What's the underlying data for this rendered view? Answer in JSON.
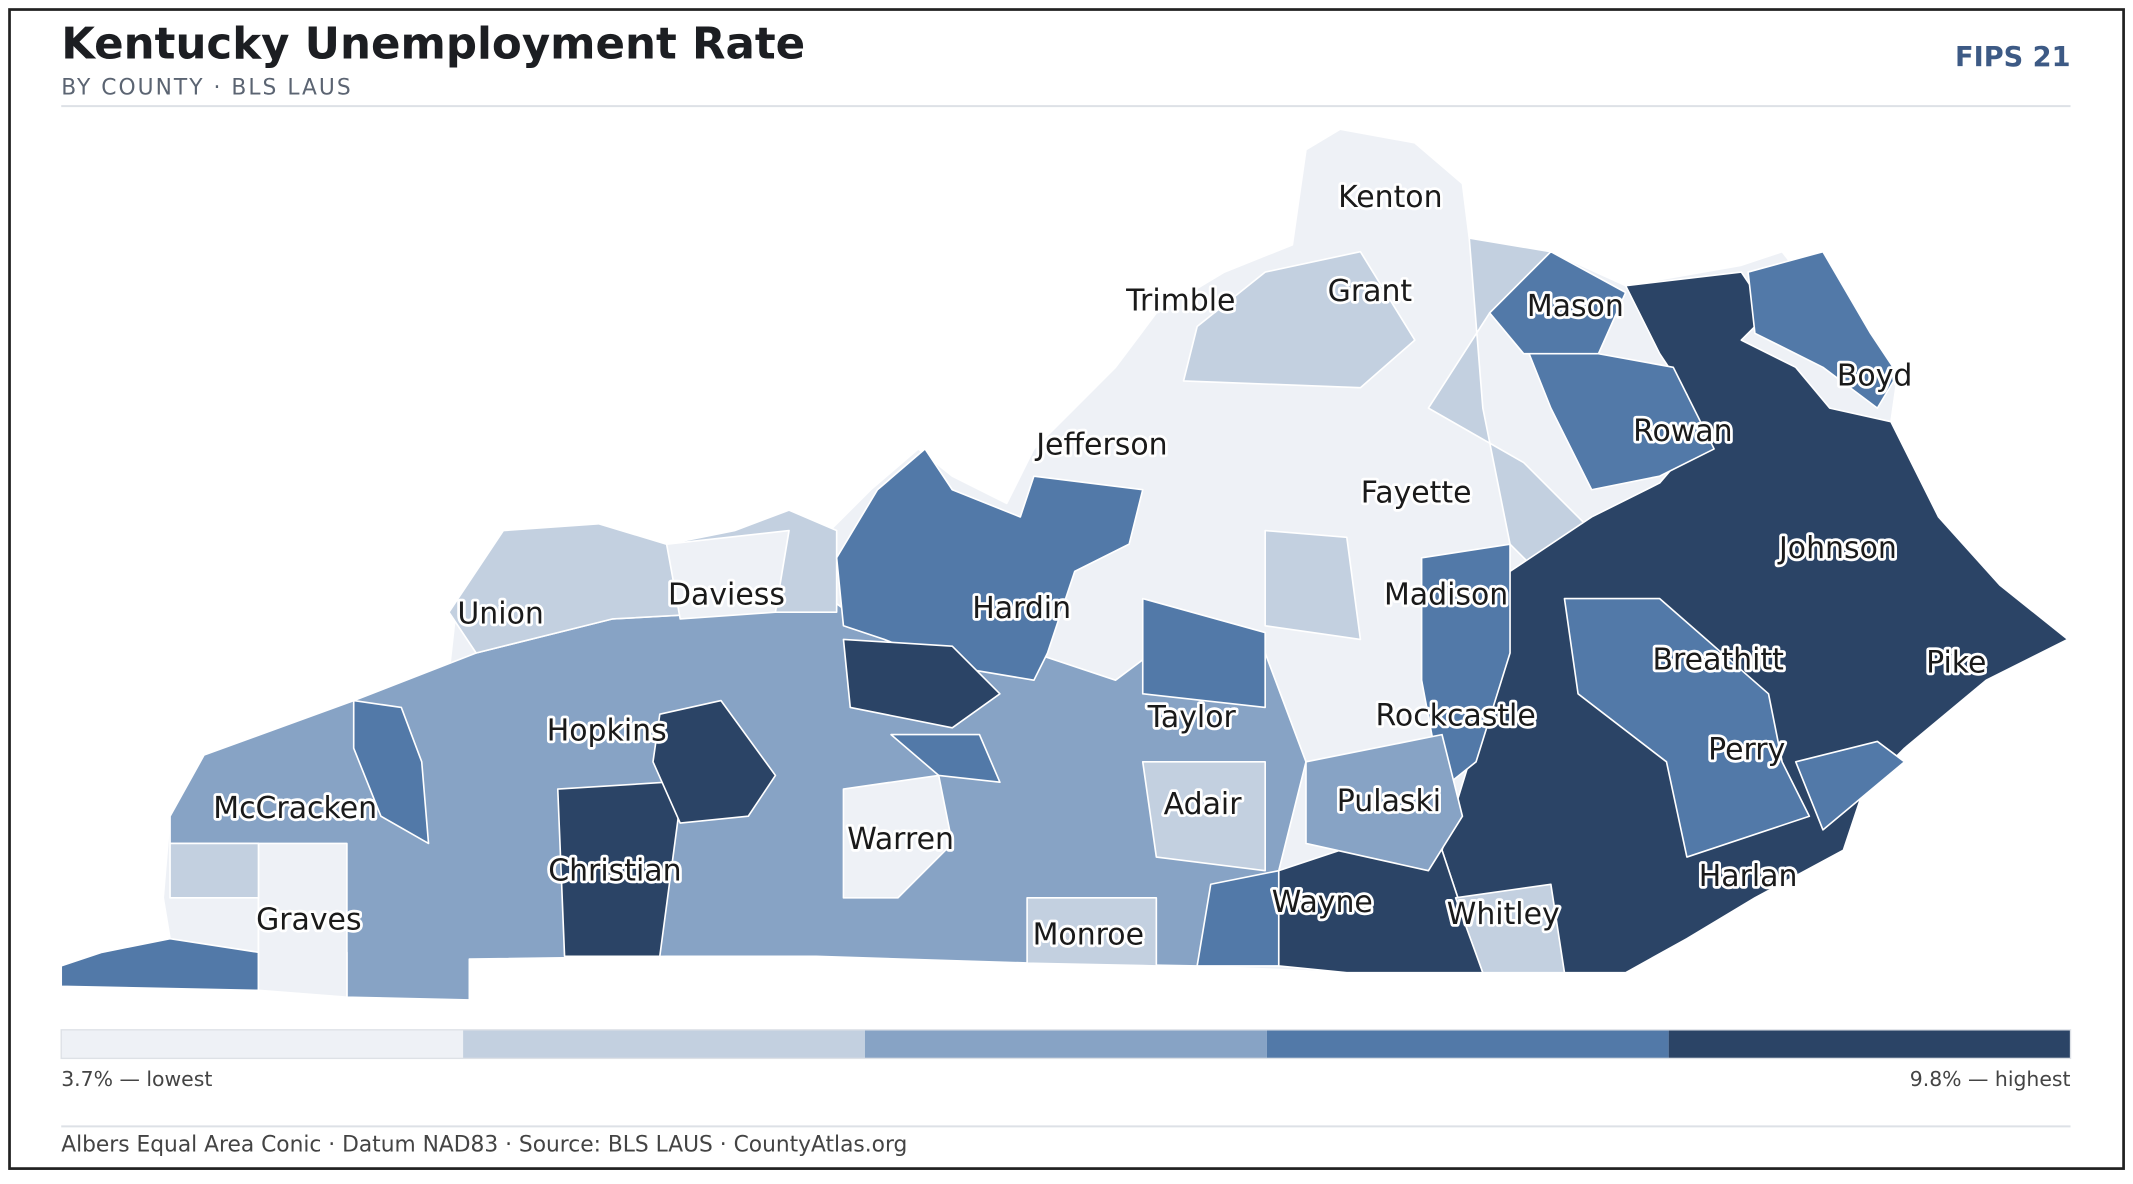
{
  "header": {
    "title": "Kentucky Unemployment Rate",
    "subtitle": "BY COUNTY · BLS LAUS",
    "badge": "FIPS 21"
  },
  "map": {
    "labels": [
      "Kenton",
      "Trimble",
      "Grant",
      "Mason",
      "Boyd",
      "Rowan",
      "Jefferson",
      "Fayette",
      "Johnson",
      "Madison",
      "Daviess",
      "Union",
      "Hardin",
      "Breathitt",
      "Pike",
      "Hopkins",
      "Taylor",
      "Rockcastle",
      "Perry",
      "McCracken",
      "Adair",
      "Pulaski",
      "Warren",
      "Christian",
      "Harlan",
      "Graves",
      "Wayne",
      "Whitley",
      "Monroe"
    ]
  },
  "legend": {
    "colors": [
      "#eef1f6",
      "#c3d0e0",
      "#87a3c5",
      "#5279a8",
      "#2b4466"
    ],
    "min_label": "3.7% — lowest",
    "max_label": "9.8% — highest"
  },
  "footer": "Albers Equal Area Conic · Datum NAD83 · Source: BLS LAUS · CountyAtlas.org"
}
